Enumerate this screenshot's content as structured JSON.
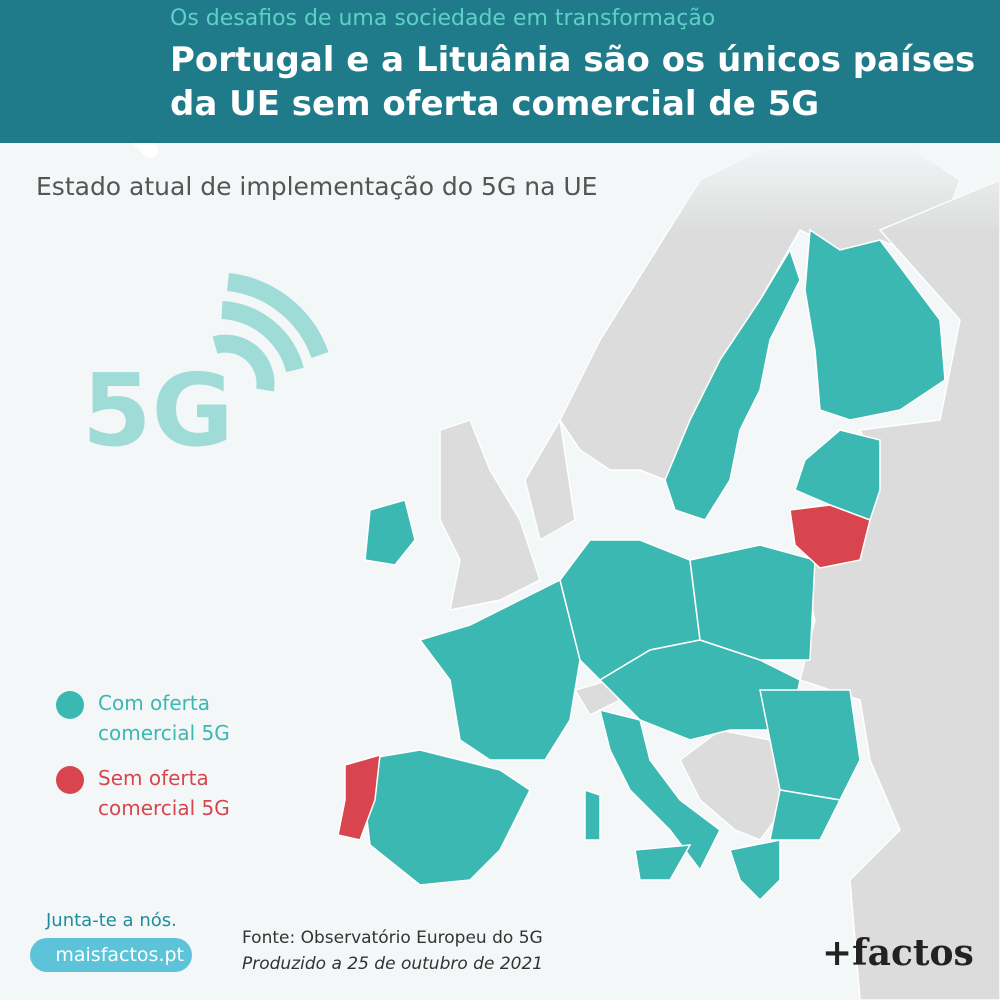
{
  "header": {
    "kicker": "Os desafios de uma sociedade em transformação",
    "title_lines": [
      "Portugal e a Lituânia são os únicos países",
      "da UE sem oferta comercial de 5G"
    ]
  },
  "subtitle": "Estado atual de implementação do 5G na UE",
  "icon_label": "5G",
  "legend": [
    {
      "label": "Com oferta comercial 5G",
      "color": "#3bb8b2"
    },
    {
      "label": "Sem oferta comercial 5G",
      "color": "#d9454f"
    }
  ],
  "footer": {
    "cta": "Junta-te a nós.",
    "link": "maisfactos.pt",
    "source": "Fonte: Observatório Europeu do 5G",
    "produced": "Produzido a 25 de outubro de 2021",
    "logo": "+factos"
  }
}
